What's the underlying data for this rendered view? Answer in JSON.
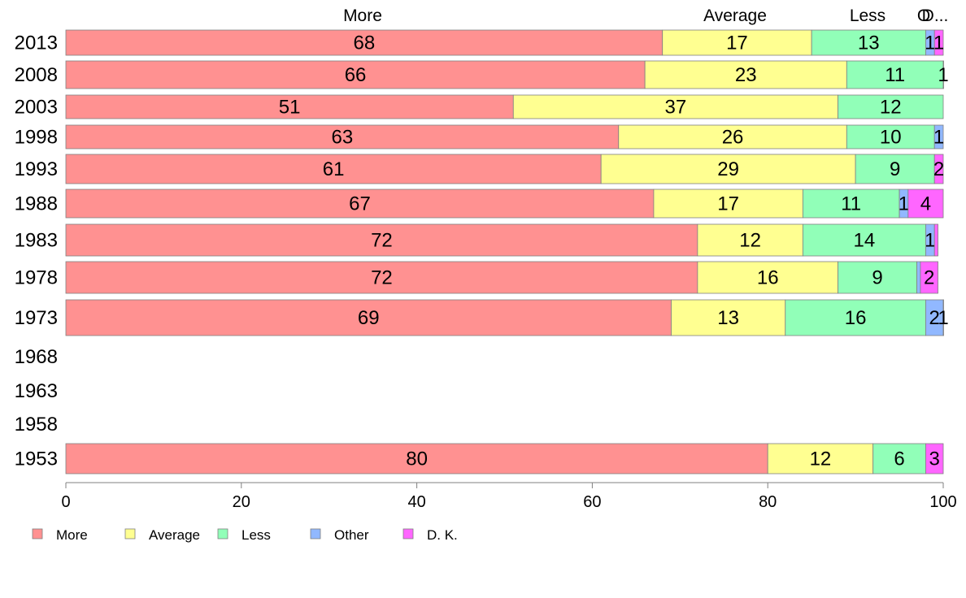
{
  "chart_data": {
    "type": "bar",
    "orientation": "horizontal",
    "stacked": true,
    "categories": [
      "2013",
      "2008",
      "2003",
      "1998",
      "1993",
      "1988",
      "1983",
      "1978",
      "1973",
      "1968",
      "1963",
      "1958",
      "1953"
    ],
    "series": [
      {
        "name": "More",
        "color": "#ff9191",
        "values": [
          68,
          66,
          51,
          63,
          61,
          67,
          72,
          72,
          69,
          null,
          null,
          null,
          80
        ],
        "labels": [
          "68",
          "66",
          "51",
          "63",
          "61",
          "67",
          "72",
          "72",
          "69",
          "",
          "",
          "",
          "80"
        ]
      },
      {
        "name": "Average",
        "color": "#ffff91",
        "values": [
          17,
          23,
          37,
          26,
          29,
          17,
          12,
          16,
          13,
          null,
          null,
          null,
          12
        ],
        "labels": [
          "17",
          "23",
          "37",
          "26",
          "29",
          "17",
          "12",
          "16",
          "13",
          "",
          "",
          "",
          "12"
        ]
      },
      {
        "name": "Less",
        "color": "#91ffb8",
        "values": [
          13,
          11,
          12,
          10,
          9,
          11,
          14,
          9,
          16,
          null,
          null,
          null,
          6
        ],
        "labels": [
          "13",
          "11",
          "12",
          "10",
          "9",
          "11",
          "14",
          "9",
          "16",
          "",
          "",
          "",
          "6"
        ]
      },
      {
        "name": "Other",
        "color": "#91b8ff",
        "values": [
          1,
          0,
          0,
          1,
          0,
          1,
          1,
          0.4,
          2,
          null,
          null,
          null,
          0
        ],
        "labels": [
          "1",
          "",
          "",
          "1",
          "",
          "1",
          "1",
          "",
          "2",
          "",
          "",
          "",
          ""
        ]
      },
      {
        "name": "D. K.",
        "color": "#ff66ff",
        "values": [
          1,
          1,
          0,
          0,
          2,
          4,
          0.4,
          2,
          1,
          null,
          null,
          null,
          3
        ],
        "labels": [
          "1",
          "1",
          "",
          "",
          "2",
          "4",
          "",
          "2",
          "1",
          "",
          "",
          "",
          "3"
        ]
      }
    ],
    "column_headers": [
      "More",
      "Average",
      "Less",
      "O",
      "D..."
    ],
    "xlim": [
      0,
      100
    ],
    "xticks": [
      "0",
      "20",
      "40",
      "60",
      "80",
      "100"
    ],
    "legend_position": "bottom-left",
    "grid": false
  }
}
